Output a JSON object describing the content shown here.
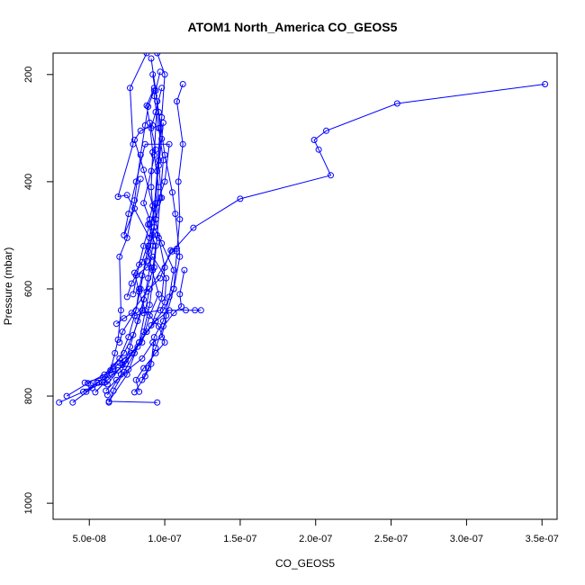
{
  "chart_data": {
    "type": "scatter",
    "title": "ATOM1 North_America CO_GEOS5",
    "xlabel": "CO_GEOS5",
    "ylabel": "Pressure (mbar)",
    "xlim": [
      2.6e-08,
      3.6e-07
    ],
    "ylim": [
      1030,
      160
    ],
    "y_reversed": true,
    "x_ticks": [
      5e-08,
      1e-07,
      1.5e-07,
      2e-07,
      2.5e-07,
      3e-07,
      3.5e-07
    ],
    "x_tick_labels": [
      "5.0e-08",
      "1.0e-07",
      "1.5e-07",
      "2.0e-07",
      "2.5e-07",
      "3.0e-07",
      "3.5e-07"
    ],
    "y_ticks": [
      200,
      400,
      600,
      800,
      1000
    ],
    "y_tick_labels": [
      "200",
      "400",
      "600",
      "800",
      "1000"
    ],
    "color": "#0000ff",
    "grid": false,
    "series": [
      {
        "points": [
          [
            3.52e-07,
            218
          ],
          [
            2.54e-07,
            254
          ],
          [
            2.07e-07,
            305
          ],
          [
            1.99e-07,
            322
          ],
          [
            2.02e-07,
            340
          ],
          [
            2.1e-07,
            388
          ],
          [
            1.5e-07,
            432
          ],
          [
            1.19e-07,
            486
          ],
          [
            1.05e-07,
            530
          ],
          [
            9e-08,
            600
          ],
          [
            8.3e-08,
            700
          ],
          [
            7.5e-08,
            760
          ],
          [
            6.3e-08,
            810
          ],
          [
            9.5e-08,
            812
          ]
        ]
      },
      {
        "points": [
          [
            3e-08,
            812
          ],
          [
            4.6e-08,
            792
          ],
          [
            5.6e-08,
            775
          ],
          [
            6.6e-08,
            745
          ],
          [
            7.3e-08,
            720
          ],
          [
            7.9e-08,
            686
          ],
          [
            8.5e-08,
            640
          ],
          [
            8.9e-08,
            580
          ],
          [
            9.2e-08,
            520
          ],
          [
            9.4e-08,
            440
          ],
          [
            9.6e-08,
            360
          ],
          [
            9.8e-08,
            280
          ],
          [
            1e-07,
            200
          ],
          [
            9.5e-08,
            160
          ]
        ]
      },
      {
        "points": [
          [
            3.5e-08,
            800
          ],
          [
            4.9e-08,
            776
          ],
          [
            6e-08,
            760
          ],
          [
            7e-08,
            730
          ],
          [
            7.6e-08,
            690
          ],
          [
            8e-08,
            650
          ],
          [
            8.4e-08,
            600
          ],
          [
            8.9e-08,
            520
          ],
          [
            9.3e-08,
            450
          ],
          [
            9.5e-08,
            380
          ],
          [
            9.7e-08,
            300
          ],
          [
            9.4e-08,
            230
          ],
          [
            9.1e-08,
            170
          ]
        ]
      },
      {
        "points": [
          [
            3.9e-08,
            812
          ],
          [
            5.2e-08,
            785
          ],
          [
            6.2e-08,
            770
          ],
          [
            6.9e-08,
            752
          ],
          [
            7.8e-08,
            720
          ],
          [
            8.8e-08,
            680
          ],
          [
            9.9e-08,
            640
          ],
          [
            1.06e-07,
            600
          ],
          [
            1.1e-07,
            540
          ],
          [
            1.07e-07,
            460
          ],
          [
            1.05e-07,
            420
          ],
          [
            1e-07,
            350
          ],
          [
            9.6e-08,
            270
          ],
          [
            9.2e-08,
            200
          ]
        ]
      },
      {
        "points": [
          [
            4.8e-08,
            792
          ],
          [
            5.5e-08,
            775
          ],
          [
            6.5e-08,
            760
          ],
          [
            7.4e-08,
            740
          ],
          [
            8.3e-08,
            700
          ],
          [
            9.4e-08,
            660
          ],
          [
            1.03e-07,
            640
          ],
          [
            1.14e-07,
            640
          ],
          [
            1.2e-07,
            640
          ],
          [
            1.24e-07,
            640
          ]
        ]
      },
      {
        "points": [
          [
            6.1e-08,
            790
          ],
          [
            6.8e-08,
            770
          ],
          [
            7.6e-08,
            750
          ],
          [
            8.5e-08,
            730
          ],
          [
            9.2e-08,
            700
          ],
          [
            9.8e-08,
            690
          ],
          [
            1.01e-07,
            650
          ],
          [
            1.06e-07,
            600
          ],
          [
            1.08e-07,
            530
          ],
          [
            1.1e-07,
            470
          ],
          [
            1.09e-07,
            400
          ],
          [
            1.12e-07,
            330
          ],
          [
            1.08e-07,
            250
          ],
          [
            1.12e-07,
            218
          ]
        ]
      },
      {
        "points": [
          [
            6.3e-08,
            812
          ],
          [
            6.6e-08,
            790
          ],
          [
            7.3e-08,
            755
          ],
          [
            8e-08,
            720
          ],
          [
            8.6e-08,
            680
          ],
          [
            9e-08,
            630
          ],
          [
            9.3e-08,
            560
          ],
          [
            9.5e-08,
            500
          ],
          [
            9.7e-08,
            430
          ],
          [
            9.9e-08,
            360
          ],
          [
            9.6e-08,
            300
          ],
          [
            9.3e-08,
            240
          ],
          [
            9.7e-08,
            195
          ]
        ]
      },
      {
        "points": [
          [
            8.3e-08,
            792
          ],
          [
            8.1e-08,
            770
          ],
          [
            8.6e-08,
            748
          ],
          [
            9.4e-08,
            720
          ],
          [
            1e-07,
            700
          ],
          [
            9.6e-08,
            670
          ],
          [
            8.7e-08,
            640
          ],
          [
            8.3e-08,
            605
          ],
          [
            8e-08,
            570
          ],
          [
            8.5e-08,
            550
          ],
          [
            9e-08,
            505
          ],
          [
            7.5e-08,
            425
          ],
          [
            6.9e-08,
            428
          ],
          [
            7.9e-08,
            330
          ],
          [
            7.7e-08,
            225
          ],
          [
            8.8e-08,
            160
          ]
        ]
      },
      {
        "points": [
          [
            5.4e-08,
            793
          ],
          [
            6e-08,
            775
          ],
          [
            6.4e-08,
            752
          ],
          [
            6.7e-08,
            720
          ],
          [
            6.9e-08,
            695
          ],
          [
            7.1e-08,
            640
          ],
          [
            7e-08,
            540
          ],
          [
            7.5e-08,
            505
          ],
          [
            8e-08,
            435
          ],
          [
            8.4e-08,
            350
          ],
          [
            8.7e-08,
            295
          ],
          [
            8.9e-08,
            260
          ],
          [
            9.3e-08,
            230
          ]
        ]
      },
      {
        "points": [
          [
            7.9e-08,
            610
          ],
          [
            8.3e-08,
            555
          ],
          [
            8.6e-08,
            520
          ],
          [
            9e-08,
            480
          ],
          [
            9.5e-08,
            440
          ],
          [
            1e-07,
            400
          ],
          [
            1.03e-07,
            330
          ],
          [
            8.7e-08,
            330
          ],
          [
            8.1e-08,
            400
          ],
          [
            7.6e-08,
            460
          ],
          [
            7.3e-08,
            500
          ],
          [
            8e-08,
            450
          ],
          [
            8.4e-08,
            395
          ]
        ]
      },
      {
        "points": [
          [
            1.13e-07,
            565
          ],
          [
            1.1e-07,
            610
          ],
          [
            1.11e-07,
            633
          ],
          [
            1.06e-07,
            645
          ],
          [
            9.9e-08,
            670
          ],
          [
            9.4e-08,
            710
          ],
          [
            8.9e-08,
            748
          ],
          [
            8.5e-08,
            770
          ]
        ]
      },
      {
        "points": [
          [
            7.5e-08,
            615
          ],
          [
            7.8e-08,
            590
          ],
          [
            8.1e-08,
            575
          ],
          [
            8.8e-08,
            560
          ],
          [
            9.2e-08,
            540
          ],
          [
            1.01e-07,
            580
          ],
          [
            1e-07,
            625
          ],
          [
            9.7e-08,
            640
          ],
          [
            8.6e-08,
            645
          ],
          [
            8e-08,
            650
          ]
        ]
      },
      {
        "points": [
          [
            6.8e-08,
            665
          ],
          [
            7.3e-08,
            655
          ],
          [
            7.8e-08,
            645
          ],
          [
            8.8e-08,
            605
          ],
          [
            9.7e-08,
            580
          ],
          [
            1.04e-07,
            528
          ],
          [
            1.08e-07,
            525
          ]
        ]
      },
      {
        "points": [
          [
            5.1e-08,
            780
          ],
          [
            6.2e-08,
            778
          ],
          [
            7.2e-08,
            742
          ],
          [
            8.2e-08,
            708
          ],
          [
            9.1e-08,
            668
          ],
          [
            9.8e-08,
            618
          ],
          [
            1e-07,
            560
          ],
          [
            9.6e-08,
            505
          ],
          [
            9.4e-08,
            470
          ],
          [
            9.8e-08,
            430
          ],
          [
            9.6e-08,
            370
          ],
          [
            9.8e-08,
            320
          ],
          [
            9.9e-08,
            290
          ]
        ]
      },
      {
        "points": [
          [
            8e-08,
            793
          ],
          [
            8.7e-08,
            763
          ],
          [
            9.1e-08,
            740
          ],
          [
            9.3e-08,
            690
          ],
          [
            9.9e-08,
            660
          ],
          [
            1.03e-07,
            615
          ],
          [
            1.06e-07,
            565
          ],
          [
            9.8e-08,
            515
          ],
          [
            9.3e-08,
            485
          ],
          [
            9.1e-08,
            410
          ],
          [
            9.2e-08,
            345
          ],
          [
            9e-08,
            290
          ],
          [
            8.8e-08,
            258
          ],
          [
            9.3e-08,
            225
          ]
        ]
      },
      {
        "points": [
          [
            6.2e-08,
            798
          ],
          [
            7.1e-08,
            760
          ],
          [
            7.4e-08,
            733
          ],
          [
            7.7e-08,
            708
          ],
          [
            8.2e-08,
            660
          ],
          [
            8.6e-08,
            620
          ],
          [
            9.2e-08,
            565
          ],
          [
            9.4e-08,
            520
          ],
          [
            8.9e-08,
            480
          ],
          [
            9.2e-08,
            445
          ],
          [
            8.6e-08,
            378
          ],
          [
            8e-08,
            322
          ],
          [
            8.4e-08,
            305
          ],
          [
            9.2e-08,
            295
          ]
        ]
      },
      {
        "points": [
          [
            4.7e-08,
            775
          ],
          [
            5.9e-08,
            765
          ],
          [
            6.6e-08,
            749
          ],
          [
            7e-08,
            738
          ],
          [
            8.5e-08,
            700
          ],
          [
            9e-08,
            650
          ],
          [
            9.6e-08,
            610
          ],
          [
            9.1e-08,
            560
          ],
          [
            8.9e-08,
            530
          ],
          [
            9.4e-08,
            470
          ],
          [
            9.6e-08,
            410
          ],
          [
            9.3e-08,
            350
          ],
          [
            9.5e-08,
            250
          ]
        ]
      },
      {
        "points": [
          [
            7e-08,
            700
          ],
          [
            7.2e-08,
            680
          ],
          [
            8.1e-08,
            640
          ],
          [
            8.3e-08,
            600
          ],
          [
            8.5e-08,
            575
          ],
          [
            8.8e-08,
            548
          ],
          [
            9.2e-08,
            500
          ],
          [
            9e-08,
            470
          ],
          [
            8.6e-08,
            440
          ],
          [
            9.1e-08,
            380
          ],
          [
            9.4e-08,
            340
          ],
          [
            9.1e-08,
            300
          ],
          [
            9.4e-08,
            270
          ],
          [
            9.8e-08,
            225
          ]
        ]
      }
    ]
  }
}
